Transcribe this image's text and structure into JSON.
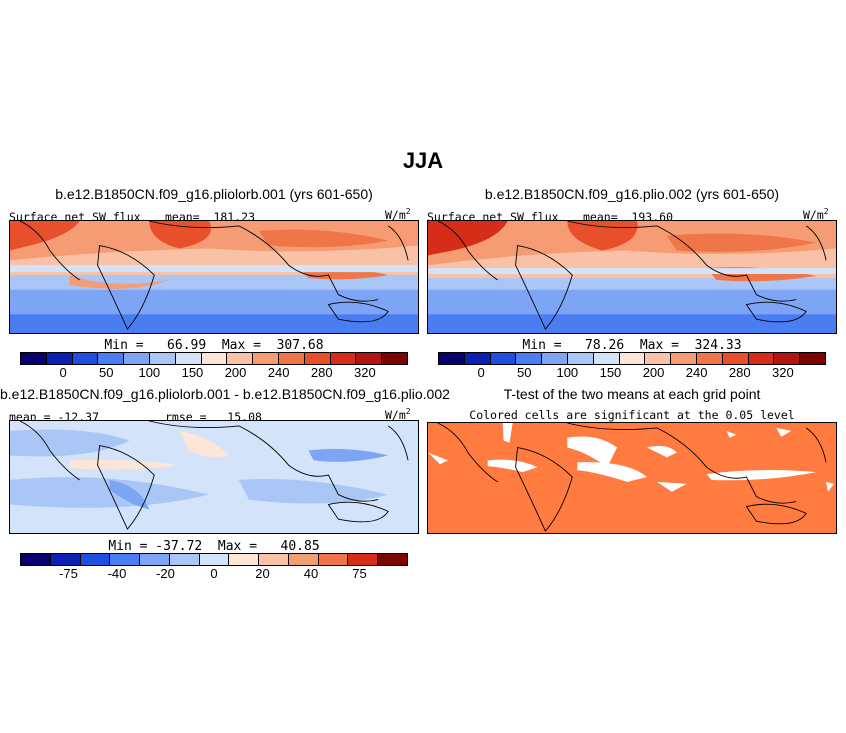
{
  "figure": {
    "title": "JJA"
  },
  "panels": [
    {
      "title": "b.e12.B1850CN.f09_g16.pliolorb.001 (yrs 601-650)",
      "left_label": "Surface net SW flux",
      "mid_label": "mean=  181.23",
      "units": "W/m",
      "units_sup": "2",
      "minmax": "Min =   66.99  Max =  307.68",
      "colorbar_ticks": [
        "0",
        "50",
        "100",
        "150",
        "200",
        "240",
        "280",
        "320"
      ]
    },
    {
      "title": "b.e12.B1850CN.f09_g16.plio.002 (yrs 601-650)",
      "left_label": "Surface net SW flux",
      "mid_label": "mean=  193.60",
      "units": "W/m",
      "units_sup": "2",
      "minmax": "Min =   78.26  Max =  324.33",
      "colorbar_ticks": [
        "0",
        "50",
        "100",
        "150",
        "200",
        "240",
        "280",
        "320"
      ]
    },
    {
      "title": "b.e12.B1850CN.f09_g16.pliolorb.001 - b.e12.B1850CN.f09_g16.plio.002",
      "left_label": "mean = -12.37",
      "mid_label": "rmse =   15.08",
      "units": "W/m",
      "units_sup": "2",
      "minmax": "Min = -37.72  Max =   40.85",
      "colorbar_ticks": [
        "-75",
        "-40",
        "-20",
        "0",
        "20",
        "40",
        "75"
      ]
    },
    {
      "title": "T-test of the two means at each grid point",
      "subtitle": "Colored cells are significant at the 0.05 level"
    }
  ],
  "colors": {
    "abs_scale": [
      "#08006e",
      "#0b1fb0",
      "#1f4ee0",
      "#4a7df2",
      "#7ea5f5",
      "#a9c6f7",
      "#d3e4fa",
      "#fde5d8",
      "#f9c2a6",
      "#f59c74",
      "#f07548",
      "#e8502c",
      "#d62d18",
      "#b2150d",
      "#7e0303"
    ],
    "diff_scale": [
      "#08006e",
      "#0b1fb0",
      "#1f4ee0",
      "#4a7df2",
      "#7ea5f5",
      "#a9c6f7",
      "#d3e4fa",
      "#fde5d8",
      "#f9c2a6",
      "#f59c74",
      "#f07548",
      "#d62d18",
      "#7e0303"
    ],
    "significant": "#ff7b3f"
  }
}
